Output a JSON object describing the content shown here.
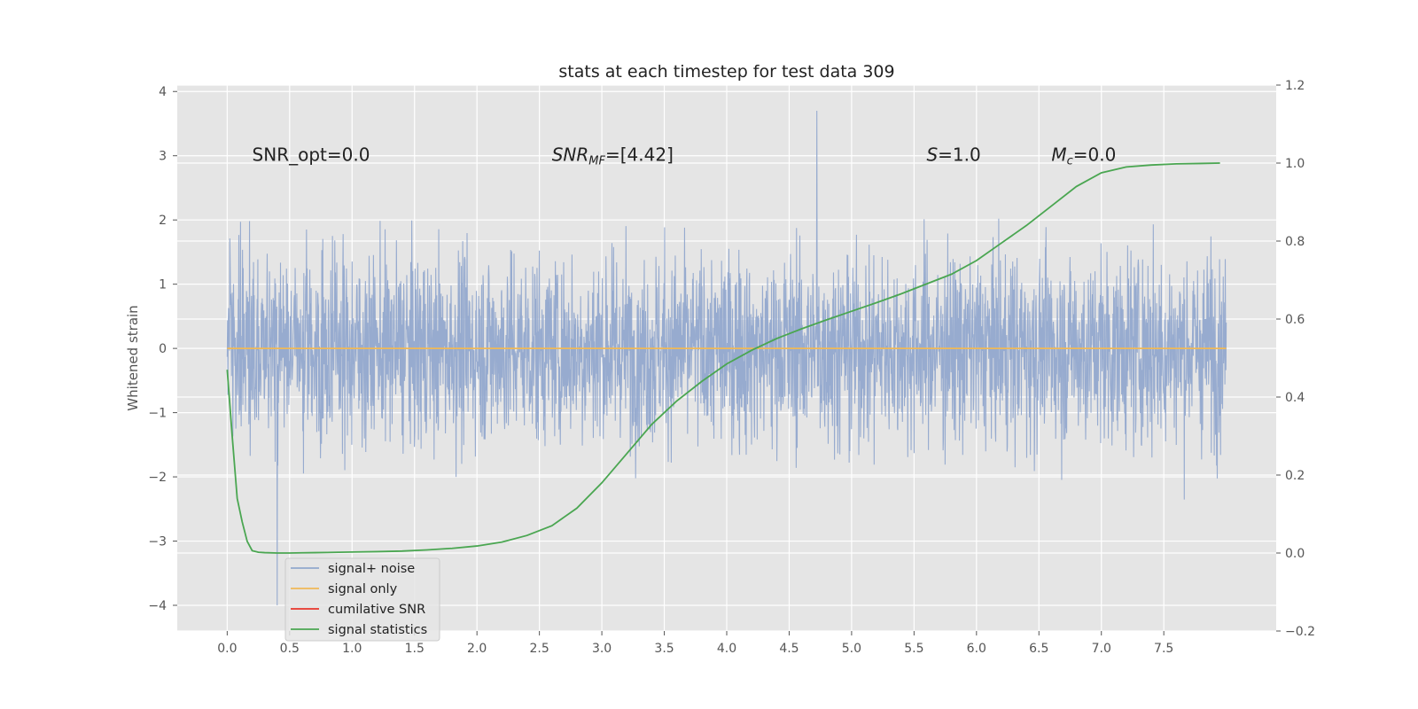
{
  "chart_data": {
    "type": "line",
    "title": "stats at each timestep for test data 309",
    "ylabel": "Whitened strain",
    "xlim": [
      -0.4,
      8.4
    ],
    "ylim_left": [
      -4.4,
      4.1
    ],
    "ylim_right": [
      -0.2,
      1.2
    ],
    "xticks": [
      "0.0",
      "0.5",
      "1.0",
      "1.5",
      "2.0",
      "2.5",
      "3.0",
      "3.5",
      "4.0",
      "4.5",
      "5.0",
      "5.5",
      "6.0",
      "6.5",
      "7.0",
      "7.5"
    ],
    "xtick_values": [
      0,
      0.5,
      1,
      1.5,
      2,
      2.5,
      3,
      3.5,
      4,
      4.5,
      5,
      5.5,
      6,
      6.5,
      7,
      7.5
    ],
    "yticks_left": [
      "−4",
      "−3",
      "−2",
      "−1",
      "0",
      "1",
      "2",
      "3",
      "4"
    ],
    "ytick_left_values": [
      -4,
      -3,
      -2,
      -1,
      0,
      1,
      2,
      3,
      4
    ],
    "yticks_right": [
      "−0.2",
      "0.0",
      "0.2",
      "0.4",
      "0.6",
      "0.8",
      "1.0",
      "1.2"
    ],
    "ytick_right_values": [
      -0.2,
      0,
      0.2,
      0.4,
      0.6,
      0.8,
      1.0,
      1.2
    ],
    "grid": true,
    "legend_position": "lower-left",
    "annotations": [
      {
        "text": "SNR_opt=0.0",
        "x": 0.2,
        "y": 3.0
      },
      {
        "text": "SNR_MF=[4.42]",
        "x": 2.6,
        "y": 3.0
      },
      {
        "text": "S=1.0",
        "x": 5.6,
        "y": 3.0
      },
      {
        "text": "M_c=0.0",
        "x": 6.6,
        "y": 3.0
      }
    ],
    "series": [
      {
        "name": "signal+ noise",
        "color": "#92a8cd",
        "kind": "noise",
        "x_range": [
          0.0,
          8.0
        ],
        "typical_range": [
          -2.0,
          2.0
        ],
        "extremes": [
          -4.0,
          3.7
        ]
      },
      {
        "name": "signal only",
        "color": "#f0b957",
        "x": [
          0.0,
          8.0
        ],
        "y": [
          0.0,
          0.0
        ]
      },
      {
        "name": "cumilative SNR",
        "color": "#e8352b",
        "x": [],
        "y": []
      },
      {
        "name": "signal statistics",
        "color": "#4aa651",
        "axis": "right",
        "x": [
          0.0,
          0.04,
          0.08,
          0.12,
          0.16,
          0.2,
          0.25,
          0.3,
          0.4,
          0.5,
          0.6,
          0.7,
          0.8,
          0.9,
          1.0,
          1.2,
          1.4,
          1.6,
          1.8,
          2.0,
          2.2,
          2.4,
          2.6,
          2.8,
          3.0,
          3.2,
          3.4,
          3.6,
          3.8,
          4.0,
          4.2,
          4.4,
          4.6,
          4.8,
          5.0,
          5.2,
          5.4,
          5.6,
          5.8,
          6.0,
          6.2,
          6.4,
          6.6,
          6.8,
          7.0,
          7.2,
          7.4,
          7.6,
          7.8,
          7.95
        ],
        "y": [
          0.47,
          0.3,
          0.14,
          0.08,
          0.03,
          0.006,
          0.002,
          0.001,
          0.0,
          0.0,
          0.0005,
          0.001,
          0.0015,
          0.002,
          0.0025,
          0.0035,
          0.005,
          0.008,
          0.012,
          0.018,
          0.028,
          0.045,
          0.07,
          0.115,
          0.18,
          0.255,
          0.33,
          0.39,
          0.44,
          0.485,
          0.52,
          0.55,
          0.575,
          0.598,
          0.62,
          0.642,
          0.665,
          0.69,
          0.715,
          0.75,
          0.795,
          0.84,
          0.89,
          0.94,
          0.975,
          0.99,
          0.995,
          0.998,
          0.999,
          1.0
        ]
      }
    ]
  }
}
